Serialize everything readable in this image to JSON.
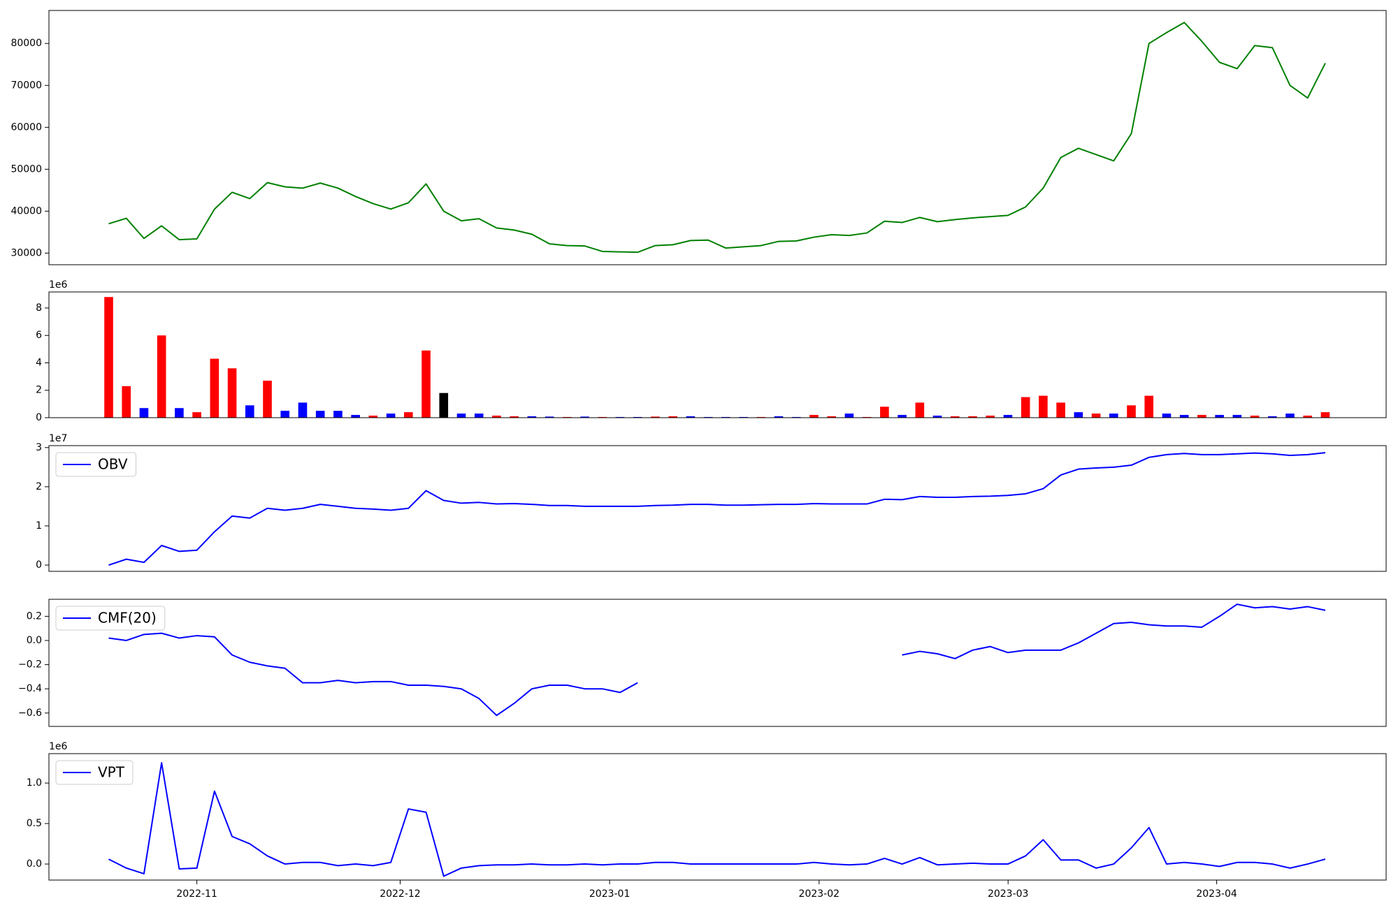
{
  "chart_data": [
    {
      "type": "line",
      "categories": [
        null,
        null,
        null,
        null,
        null,
        null,
        null,
        null,
        null,
        null,
        null,
        null,
        null,
        null,
        null,
        null,
        null,
        null,
        null,
        null,
        null,
        null,
        null,
        null,
        null,
        null,
        null,
        null,
        null,
        null,
        null,
        null,
        null,
        null,
        null,
        null,
        null,
        null,
        null,
        null,
        null,
        null,
        null,
        null,
        null,
        null,
        null,
        null,
        null,
        null,
        null,
        null,
        null,
        null,
        null,
        null,
        null,
        null,
        null,
        null,
        null,
        null,
        null,
        null,
        null,
        null,
        null,
        null,
        null,
        null
      ],
      "xlim": [
        -3.39,
        72.45
      ],
      "ylim": [
        27230,
        87870
      ],
      "yticks": [
        30000,
        40000,
        50000,
        60000,
        70000,
        80000
      ],
      "series": [
        {
          "color": "#008000",
          "values": [
            37000,
            38300,
            33500,
            36500,
            33200,
            33400,
            40500,
            44500,
            43000,
            46800,
            45800,
            45500,
            46700,
            45500,
            43500,
            41800,
            40500,
            42000,
            46500,
            40000,
            37700,
            38200,
            36000,
            35500,
            34500,
            32200,
            31800,
            31700,
            30400,
            30300,
            30200,
            31800,
            32000,
            33000,
            33100,
            31200,
            31500,
            31800,
            32800,
            32900,
            33800,
            34400,
            34200,
            34800,
            37600,
            37300,
            38500,
            37500,
            38000,
            38400,
            38700,
            39000,
            41000,
            45500,
            52800,
            55000,
            53500,
            52000,
            58500,
            80000,
            82600,
            85000,
            80500,
            75500,
            74000,
            79500,
            79000,
            70000,
            67000,
            75300
          ]
        }
      ]
    },
    {
      "type": "bar",
      "categories": [
        null,
        null,
        null,
        null,
        null,
        null,
        null,
        null,
        null,
        null,
        null,
        null,
        null,
        null,
        null,
        null,
        null,
        null,
        null,
        null,
        null,
        null,
        null,
        null,
        null,
        null,
        null,
        null,
        null,
        null,
        null,
        null,
        null,
        null,
        null,
        null,
        null,
        null,
        null,
        null,
        null,
        null,
        null,
        null,
        null,
        null,
        null,
        null,
        null,
        null,
        null,
        null,
        null,
        null,
        null,
        null,
        null,
        null,
        null,
        null,
        null,
        null,
        null,
        null,
        null,
        null,
        null,
        null,
        null,
        null
      ],
      "xlim": [
        -3.39,
        72.45
      ],
      "offset_text": "1e6",
      "ylim": [
        0,
        9.17
      ],
      "yticks": [
        0,
        2,
        4,
        6,
        8
      ],
      "values": [
        8.8,
        2.3,
        0.7,
        6.0,
        0.7,
        0.4,
        4.3,
        3.6,
        0.9,
        2.7,
        0.5,
        1.1,
        0.5,
        0.5,
        0.2,
        0.15,
        0.3,
        0.4,
        4.9,
        1.8,
        0.3,
        0.3,
        0.15,
        0.1,
        0.1,
        0.08,
        0.05,
        0.08,
        0.05,
        0.05,
        0.05,
        0.08,
        0.1,
        0.1,
        0.05,
        0.05,
        0.05,
        0.05,
        0.1,
        0.05,
        0.2,
        0.1,
        0.3,
        0.05,
        0.8,
        0.2,
        1.1,
        0.15,
        0.1,
        0.1,
        0.15,
        0.2,
        1.5,
        1.6,
        1.1,
        0.4,
        0.3,
        0.3,
        0.9,
        1.6,
        0.3,
        0.2,
        0.2,
        0.2,
        0.2,
        0.15,
        0.1,
        0.3,
        0.15,
        0.4
      ],
      "colors": [
        "red",
        "red",
        "blue",
        "red",
        "blue",
        "red",
        "red",
        "red",
        "blue",
        "red",
        "blue",
        "blue",
        "blue",
        "blue",
        "blue",
        "red",
        "blue",
        "red",
        "red",
        "black",
        "blue",
        "blue",
        "red",
        "red",
        "blue",
        "blue",
        "red",
        "blue",
        "red",
        "blue",
        "blue",
        "red",
        "red",
        "blue",
        "blue",
        "blue",
        "blue",
        "red",
        "blue",
        "blue",
        "red",
        "red",
        "blue",
        "red",
        "red",
        "blue",
        "red",
        "blue",
        "red",
        "red",
        "red",
        "blue",
        "red",
        "red",
        "red",
        "blue",
        "red",
        "blue",
        "red",
        "red",
        "blue",
        "blue",
        "red",
        "blue",
        "blue",
        "red",
        "blue",
        "blue",
        "red",
        "red"
      ]
    },
    {
      "type": "line",
      "categories": [
        null,
        null,
        null,
        null,
        null,
        null,
        null,
        null,
        null,
        null,
        null,
        null,
        null,
        null,
        null,
        null,
        null,
        null,
        null,
        null,
        null,
        null,
        null,
        null,
        null,
        null,
        null,
        null,
        null,
        null,
        null,
        null,
        null,
        null,
        null,
        null,
        null,
        null,
        null,
        null,
        null,
        null,
        null,
        null,
        null,
        null,
        null,
        null,
        null,
        null,
        null,
        null,
        null,
        null,
        null,
        null,
        null,
        null,
        null,
        null,
        null,
        null,
        null,
        null,
        null,
        null,
        null,
        null,
        null,
        null
      ],
      "xlim": [
        -3.39,
        72.45
      ],
      "offset_text": "1e7",
      "ylim": [
        -0.16,
        3.05
      ],
      "yticks": [
        0,
        1,
        2,
        3
      ],
      "legend": "upper left",
      "series": [
        {
          "name": "OBV",
          "color": "#0000ff",
          "values": [
            0.0,
            0.15,
            0.07,
            0.5,
            0.35,
            0.38,
            0.85,
            1.25,
            1.2,
            1.45,
            1.4,
            1.45,
            1.55,
            1.5,
            1.45,
            1.43,
            1.4,
            1.45,
            1.9,
            1.65,
            1.58,
            1.6,
            1.56,
            1.57,
            1.55,
            1.52,
            1.52,
            1.5,
            1.5,
            1.5,
            1.5,
            1.52,
            1.53,
            1.55,
            1.55,
            1.53,
            1.53,
            1.54,
            1.55,
            1.55,
            1.57,
            1.56,
            1.56,
            1.56,
            1.68,
            1.67,
            1.75,
            1.73,
            1.73,
            1.75,
            1.76,
            1.78,
            1.82,
            1.95,
            2.3,
            2.45,
            2.48,
            2.5,
            2.55,
            2.75,
            2.82,
            2.85,
            2.82,
            2.82,
            2.84,
            2.86,
            2.84,
            2.8,
            2.82,
            2.87
          ]
        }
      ]
    },
    {
      "type": "line",
      "categories": [
        null,
        null,
        null,
        null,
        null,
        null,
        null,
        null,
        null,
        null,
        null,
        null,
        null,
        null,
        null,
        null,
        null,
        null,
        null,
        null,
        null,
        null,
        null,
        null,
        null,
        null,
        null,
        null,
        null,
        null,
        null,
        null,
        null,
        null,
        null,
        null,
        null,
        null,
        null,
        null,
        null,
        null,
        null,
        null,
        null,
        null,
        null,
        null,
        null,
        null,
        null,
        null,
        null,
        null,
        null,
        null,
        null,
        null,
        null,
        null,
        null,
        null,
        null,
        null,
        null,
        null,
        null,
        null,
        null,
        null
      ],
      "xlim": [
        -3.39,
        72.45
      ],
      "ylim": [
        -0.711,
        0.341
      ],
      "yticks": [
        {
          "value": -0.6,
          "label": "−0.6"
        },
        {
          "value": -0.4,
          "label": "−0.4"
        },
        {
          "value": -0.2,
          "label": "−0.2"
        },
        {
          "value": 0,
          "label": "0.0"
        },
        0.2
      ],
      "legend": "upper left",
      "series": [
        {
          "name": "CMF(20)",
          "color": "#0000ff",
          "values": [
            0.02,
            0.0,
            0.05,
            0.06,
            0.02,
            0.04,
            0.03,
            -0.12,
            -0.18,
            -0.21,
            -0.23,
            -0.35,
            -0.35,
            -0.33,
            -0.35,
            -0.34,
            -0.34,
            -0.37,
            -0.37,
            -0.38,
            -0.4,
            -0.48,
            -0.62,
            -0.52,
            -0.4,
            -0.37,
            -0.37,
            -0.4,
            -0.4,
            -0.43,
            -0.35,
            null,
            null,
            null,
            null,
            null,
            null,
            null,
            null,
            null,
            null,
            null,
            null,
            null,
            null,
            -0.12,
            -0.09,
            -0.11,
            -0.15,
            -0.08,
            -0.05,
            -0.1,
            -0.08,
            -0.08,
            -0.08,
            -0.02,
            0.06,
            0.14,
            0.15,
            0.13,
            0.12,
            0.12,
            0.11,
            0.2,
            0.3,
            0.27,
            0.28,
            0.26,
            0.28,
            0.25
          ]
        }
      ]
    },
    {
      "type": "line",
      "categories": [
        null,
        null,
        null,
        null,
        null,
        null,
        null,
        null,
        null,
        null,
        null,
        null,
        null,
        null,
        null,
        null,
        null,
        null,
        null,
        null,
        null,
        null,
        null,
        null,
        null,
        null,
        null,
        null,
        null,
        null,
        null,
        null,
        null,
        null,
        null,
        null,
        null,
        null,
        null,
        null,
        null,
        null,
        null,
        null,
        null,
        null,
        null,
        null,
        null,
        null,
        null,
        null,
        null,
        null,
        null,
        null,
        null,
        null,
        null,
        null,
        null,
        null,
        null,
        null,
        null,
        null,
        null,
        null,
        null,
        null
      ],
      "xlim": [
        -3.39,
        72.45
      ],
      "xticks": [
        {
          "value": 5.0,
          "label": "2022-11"
        },
        {
          "value": 16.53,
          "label": "2022-12"
        },
        {
          "value": 28.41,
          "label": "2023-01"
        },
        {
          "value": 40.29,
          "label": "2023-02"
        },
        {
          "value": 51.01,
          "label": "2023-03"
        },
        {
          "value": 62.84,
          "label": "2023-04"
        }
      ],
      "offset_text": "1e6",
      "ylim": [
        -0.198,
        1.363
      ],
      "yticks": [
        {
          "value": 0,
          "label": "0.0"
        },
        0.5,
        {
          "value": 1,
          "label": "1.0"
        }
      ],
      "legend": "upper left",
      "series": [
        {
          "name": "VPT",
          "color": "#0000ff",
          "values": [
            0.06,
            -0.05,
            -0.12,
            1.25,
            -0.06,
            -0.05,
            0.9,
            0.34,
            0.25,
            0.1,
            0.0,
            0.02,
            0.02,
            -0.02,
            0.0,
            -0.02,
            0.02,
            0.68,
            0.64,
            -0.15,
            -0.05,
            -0.02,
            -0.01,
            -0.01,
            0.0,
            -0.01,
            -0.01,
            0.0,
            -0.01,
            0.0,
            0.0,
            0.02,
            0.02,
            0.0,
            0.0,
            0.0,
            0.0,
            0.0,
            0.0,
            0.0,
            0.02,
            0.0,
            -0.01,
            0.0,
            0.07,
            0.0,
            0.08,
            -0.01,
            0.0,
            0.01,
            0.0,
            0.0,
            0.1,
            0.3,
            0.05,
            0.05,
            -0.05,
            0.0,
            0.2,
            0.45,
            0.0,
            0.02,
            0.0,
            -0.03,
            0.02,
            0.02,
            0.0,
            -0.05,
            0.0,
            0.06
          ]
        }
      ]
    }
  ]
}
